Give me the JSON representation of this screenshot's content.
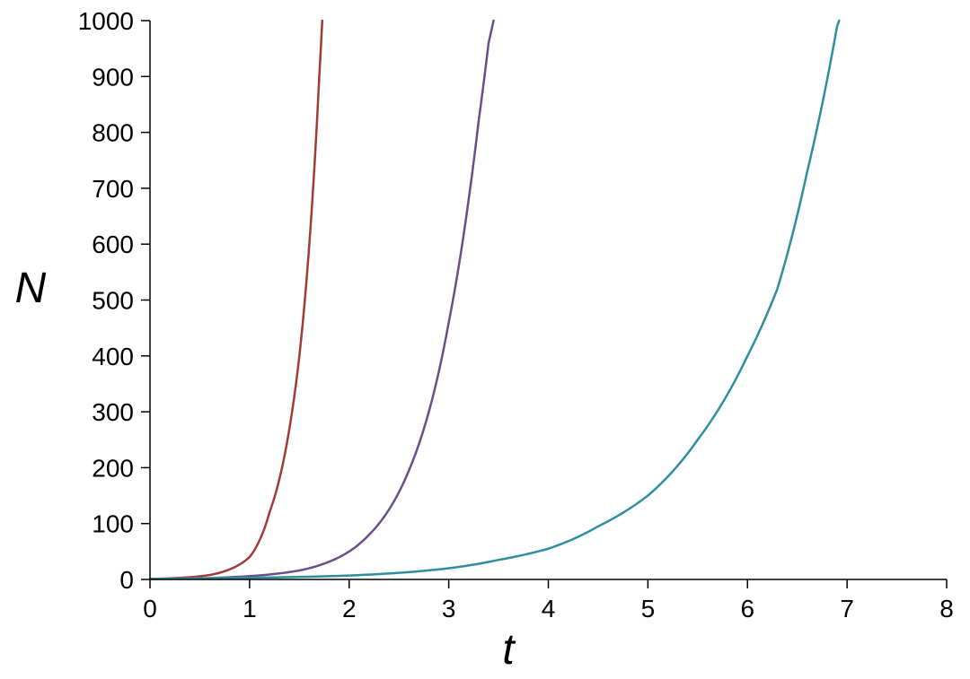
{
  "chart_data": {
    "type": "line",
    "title": "",
    "xlabel": "t",
    "ylabel": "N",
    "xlim": [
      0,
      8
    ],
    "ylim": [
      0,
      1000
    ],
    "x_ticks": [
      0,
      1,
      2,
      3,
      4,
      5,
      6,
      7,
      8
    ],
    "y_ticks": [
      0,
      100,
      200,
      300,
      400,
      500,
      600,
      700,
      800,
      900,
      1000
    ],
    "grid": false,
    "legend": "none",
    "series": [
      {
        "color": "#a23b38",
        "x": [
          0,
          0.2,
          0.4,
          0.6,
          0.8,
          1.0,
          1.1,
          1.2,
          1.3,
          1.4,
          1.5,
          1.6,
          1.7,
          1.73
        ],
        "y": [
          1,
          2,
          4,
          8,
          18,
          40,
          70,
          120,
          180,
          270,
          400,
          600,
          900,
          1000
        ]
      },
      {
        "color": "#6a4e8a",
        "x": [
          0,
          0.5,
          1.0,
          1.5,
          2.0,
          2.2,
          2.4,
          2.6,
          2.8,
          3.0,
          3.1,
          3.2,
          3.3,
          3.4,
          3.45
        ],
        "y": [
          1,
          2,
          6,
          16,
          50,
          80,
          125,
          195,
          300,
          460,
          560,
          680,
          820,
          960,
          1000
        ]
      },
      {
        "color": "#2e8ea0",
        "x": [
          0,
          1,
          2,
          3,
          3.5,
          4.0,
          4.5,
          5.0,
          5.5,
          6.0,
          6.3,
          6.6,
          6.9,
          6.92
        ],
        "y": [
          1,
          3,
          7,
          20,
          35,
          55,
          95,
          150,
          250,
          400,
          520,
          730,
          990,
          1000
        ]
      }
    ]
  }
}
